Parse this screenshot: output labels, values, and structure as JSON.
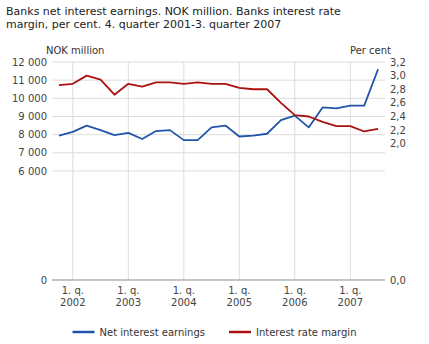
{
  "chart_data": {
    "type": "line",
    "title": "Banks net interest earnings. NOK million. Banks interest rate\nmargin, per cent. 4. quarter 2001-3. quarter 2007",
    "y_label": "NOK million",
    "y2_label": "Per cent",
    "categories": [
      null,
      "1. q.\n2002",
      null,
      null,
      null,
      "1. q.\n2003",
      null,
      null,
      null,
      "1. q.\n2004",
      null,
      null,
      null,
      "1. q.\n2005",
      null,
      null,
      null,
      "1. q.\n2006",
      null,
      null,
      null,
      "1. q.\n2007",
      null,
      null
    ],
    "series": [
      {
        "name": "Net interest earnings",
        "color": "#2255aa",
        "values": [
          7950,
          8150,
          8500,
          8250,
          7980,
          8100,
          7760,
          8200,
          8250,
          7700,
          7700,
          8400,
          8500,
          7900,
          7950,
          8050,
          8800,
          9050,
          8400,
          9500,
          9450,
          9600,
          9600,
          11600
        ]
      },
      {
        "name": "Interest rate margin",
        "color": "#aa1111",
        "axis": "y2",
        "values": [
          2.86,
          2.88,
          3.0,
          2.94,
          2.72,
          2.88,
          2.84,
          2.9,
          2.9,
          2.88,
          2.9,
          2.88,
          2.88,
          2.82,
          2.8,
          2.8,
          2.6,
          2.42,
          2.4,
          2.32,
          2.26,
          2.26,
          2.18,
          2.22
        ]
      }
    ],
    "ylim": [
      0,
      12000
    ],
    "yticks": [
      0,
      {
        "value": 6000,
        "label": "6 000"
      },
      {
        "value": 7000,
        "label": "7 000"
      },
      {
        "value": 8000,
        "label": "8 000"
      },
      {
        "value": 9000,
        "label": "9 000"
      },
      {
        "value": 10000,
        "label": "10 000"
      },
      {
        "value": 11000,
        "label": "11 000"
      },
      {
        "value": 12000,
        "label": "12 000"
      }
    ],
    "y2lim": [
      0.0,
      3.2
    ],
    "y2ticks": [
      {
        "value": 0.0,
        "label": "0,0"
      },
      {
        "value": 2.0,
        "label": "2,0"
      },
      {
        "value": 2.2,
        "label": "2,2"
      },
      {
        "value": 2.4,
        "label": "2,4"
      },
      {
        "value": 2.6,
        "label": "2,6"
      },
      {
        "value": 2.8,
        "label": "2,8"
      },
      {
        "value": 3.0,
        "label": "3,0"
      },
      {
        "value": 3.2,
        "label": "3,2"
      }
    ],
    "grid": true,
    "legend": "bottom"
  }
}
